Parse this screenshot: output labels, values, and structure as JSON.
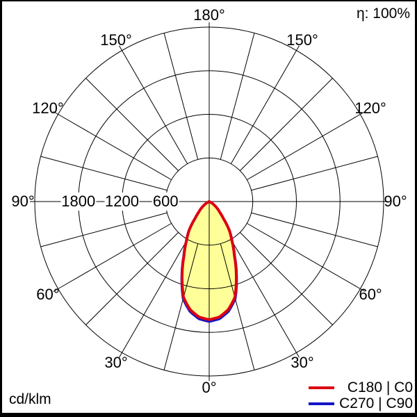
{
  "header": {
    "efficiency": "η: 100%"
  },
  "footer": {
    "unit": "cd/klm"
  },
  "legend": [
    {
      "label": "C180 | C0",
      "color": "#dd0011"
    },
    {
      "label": "C270 | C90",
      "color": "#1515c8"
    }
  ],
  "polar": {
    "angle_step_deg": 15,
    "radial_circles": [
      600,
      1200,
      1800,
      2400
    ],
    "radial_labels": [
      {
        "text": "1800",
        "value": 1800
      },
      {
        "text": "1200",
        "value": 1200
      },
      {
        "text": "600",
        "value": 600
      }
    ],
    "angle_labels": [
      {
        "text": "180°",
        "gamma": 180,
        "side": 0
      },
      {
        "text": "150°",
        "gamma": 150,
        "side": -1
      },
      {
        "text": "150°",
        "gamma": 150,
        "side": 1
      },
      {
        "text": "120°",
        "gamma": 120,
        "side": -1
      },
      {
        "text": "120°",
        "gamma": 120,
        "side": 1
      },
      {
        "text": "90°",
        "gamma": 90,
        "side": -1
      },
      {
        "text": "90°",
        "gamma": 90,
        "side": 1
      },
      {
        "text": "60°",
        "gamma": 60,
        "side": -1
      },
      {
        "text": "60°",
        "gamma": 60,
        "side": 1
      },
      {
        "text": "30°",
        "gamma": 30,
        "side": -1
      },
      {
        "text": "30°",
        "gamma": 30,
        "side": 1
      },
      {
        "text": "0°",
        "gamma": 0,
        "side": 0
      }
    ]
  },
  "chart_data": {
    "type": "line",
    "subtype": "polar-luminous-intensity-distribution",
    "title": "Luminous intensity distribution curve",
    "units": "cd/klm",
    "efficiency_percent": 100,
    "radial_axis": {
      "ticks": [
        600,
        1200,
        1800
      ],
      "max": 2400
    },
    "angle_axis": {
      "label_step_deg": 30,
      "grid_step_deg": 15,
      "zero_direction": "down"
    },
    "gamma_deg": [
      0,
      5,
      10,
      15,
      20,
      25,
      30,
      35,
      40,
      45,
      50,
      55,
      60,
      65,
      70
    ],
    "series": [
      {
        "name": "C180 | C0",
        "color": "#dd0011",
        "values": [
          1625,
          1595,
          1510,
          1365,
          1090,
          820,
          625,
          480,
          300,
          200,
          140,
          85,
          45,
          15,
          0
        ]
      },
      {
        "name": "C270 | C90",
        "color": "#1515c8",
        "values": [
          1625,
          1595,
          1510,
          1365,
          1090,
          820,
          625,
          480,
          300,
          200,
          140,
          85,
          45,
          15,
          0
        ]
      }
    ],
    "fill_color": "#ffff99",
    "legend_position": "bottom-right",
    "symmetric": true
  }
}
